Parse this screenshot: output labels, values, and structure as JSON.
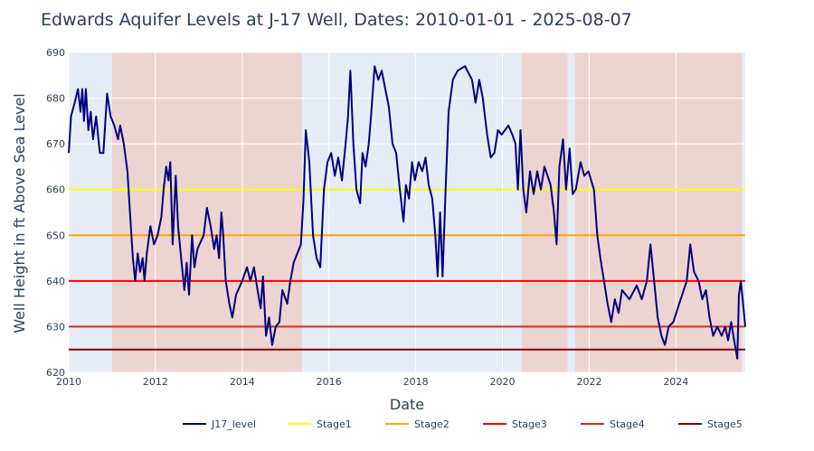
{
  "chart_data": {
    "type": "line",
    "title": "Edwards Aquifer Levels at J-17 Well, Dates: 2010-01-01 - 2025-08-07",
    "xlabel": "Date",
    "ylabel": "Well Height in ft Above Sea Level",
    "xlim": [
      "2010-01-01",
      "2025-08-07"
    ],
    "ylim": [
      620,
      690
    ],
    "xticks": [
      "2010",
      "2012",
      "2014",
      "2016",
      "2018",
      "2020",
      "2022",
      "2024"
    ],
    "yticks": [
      620,
      630,
      640,
      650,
      660,
      670,
      680,
      690
    ],
    "grid": true,
    "legend_position": "bottom",
    "colors": {
      "plot_bg": "#e5ecf6",
      "drought_shade": "#ecd4d0",
      "line": "#000080"
    },
    "shaded_regions": [
      {
        "start": "2010-01-01",
        "end": "2011-01-01",
        "kind": "normal"
      },
      {
        "start": "2011-01-01",
        "end": "2015-05-20",
        "kind": "drought"
      },
      {
        "start": "2015-05-20",
        "end": "2020-06-10",
        "kind": "normal"
      },
      {
        "start": "2020-06-10",
        "end": "2021-07-01",
        "kind": "drought"
      },
      {
        "start": "2021-07-01",
        "end": "2021-09-05",
        "kind": "normal"
      },
      {
        "start": "2021-09-05",
        "end": "2025-07-10",
        "kind": "drought"
      },
      {
        "start": "2025-07-10",
        "end": "2025-08-07",
        "kind": "normal"
      }
    ],
    "stages": [
      {
        "name": "Stage1",
        "value": 660,
        "color": "#ffff00"
      },
      {
        "name": "Stage2",
        "value": 650,
        "color": "#ffa500"
      },
      {
        "name": "Stage3",
        "value": 640,
        "color": "#ff0000"
      },
      {
        "name": "Stage4",
        "value": 630,
        "color": "#e32424"
      },
      {
        "name": "Stage5",
        "value": 625,
        "color": "#8b0000"
      }
    ],
    "series": [
      {
        "name": "J17_level",
        "color": "#000080",
        "points": [
          [
            "2010-01-01",
            668
          ],
          [
            "2010-01-20",
            676
          ],
          [
            "2010-02-20",
            679
          ],
          [
            "2010-03-20",
            682
          ],
          [
            "2010-04-10",
            677
          ],
          [
            "2010-04-25",
            682
          ],
          [
            "2010-05-10",
            675
          ],
          [
            "2010-05-25",
            682
          ],
          [
            "2010-06-15",
            673
          ],
          [
            "2010-07-05",
            677
          ],
          [
            "2010-07-25",
            671
          ],
          [
            "2010-08-20",
            676
          ],
          [
            "2010-09-20",
            668
          ],
          [
            "2010-10-20",
            668
          ],
          [
            "2010-11-20",
            681
          ],
          [
            "2010-12-20",
            676
          ],
          [
            "2011-01-20",
            674
          ],
          [
            "2011-02-20",
            671
          ],
          [
            "2011-03-10",
            674
          ],
          [
            "2011-04-10",
            670
          ],
          [
            "2011-05-10",
            664
          ],
          [
            "2011-06-01",
            655
          ],
          [
            "2011-06-25",
            645
          ],
          [
            "2011-07-15",
            640
          ],
          [
            "2011-08-05",
            646
          ],
          [
            "2011-08-25",
            642
          ],
          [
            "2011-09-15",
            645
          ],
          [
            "2011-10-01",
            640
          ],
          [
            "2011-10-20",
            646
          ],
          [
            "2011-11-20",
            652
          ],
          [
            "2011-12-20",
            648
          ],
          [
            "2012-01-20",
            650
          ],
          [
            "2012-02-20",
            654
          ],
          [
            "2012-03-10",
            660
          ],
          [
            "2012-04-01",
            665
          ],
          [
            "2012-04-20",
            662
          ],
          [
            "2012-05-05",
            666
          ],
          [
            "2012-05-25",
            648
          ],
          [
            "2012-06-20",
            663
          ],
          [
            "2012-07-10",
            652
          ],
          [
            "2012-08-05",
            645
          ],
          [
            "2012-09-01",
            638
          ],
          [
            "2012-09-20",
            644
          ],
          [
            "2012-10-10",
            637
          ],
          [
            "2012-11-05",
            650
          ],
          [
            "2012-11-25",
            643
          ],
          [
            "2012-12-20",
            647
          ],
          [
            "2013-02-10",
            650
          ],
          [
            "2013-03-10",
            656
          ],
          [
            "2013-04-10",
            652
          ],
          [
            "2013-05-10",
            647
          ],
          [
            "2013-05-30",
            650
          ],
          [
            "2013-06-20",
            645
          ],
          [
            "2013-07-10",
            655
          ],
          [
            "2013-07-25",
            650
          ],
          [
            "2013-08-15",
            640
          ],
          [
            "2013-09-15",
            635
          ],
          [
            "2013-10-10",
            632
          ],
          [
            "2013-11-10",
            637
          ],
          [
            "2014-01-01",
            640
          ],
          [
            "2014-02-10",
            643
          ],
          [
            "2014-03-10",
            640
          ],
          [
            "2014-04-10",
            643
          ],
          [
            "2014-05-10",
            638
          ],
          [
            "2014-06-05",
            634
          ],
          [
            "2014-06-25",
            641
          ],
          [
            "2014-07-20",
            628
          ],
          [
            "2014-08-15",
            632
          ],
          [
            "2014-09-10",
            626
          ],
          [
            "2014-10-10",
            630
          ],
          [
            "2014-11-10",
            631
          ],
          [
            "2014-12-05",
            638
          ],
          [
            "2015-01-15",
            635
          ],
          [
            "2015-02-10",
            640
          ],
          [
            "2015-03-10",
            644
          ],
          [
            "2015-04-10",
            646
          ],
          [
            "2015-05-10",
            648
          ],
          [
            "2015-06-01",
            658
          ],
          [
            "2015-06-20",
            673
          ],
          [
            "2015-07-20",
            666
          ],
          [
            "2015-08-20",
            650
          ],
          [
            "2015-09-20",
            645
          ],
          [
            "2015-10-20",
            643
          ],
          [
            "2015-11-20",
            660
          ],
          [
            "2015-12-20",
            666
          ],
          [
            "2016-01-20",
            668
          ],
          [
            "2016-02-20",
            663
          ],
          [
            "2016-03-20",
            667
          ],
          [
            "2016-04-20",
            662
          ],
          [
            "2016-05-20",
            670
          ],
          [
            "2016-06-10",
            676
          ],
          [
            "2016-06-30",
            686
          ],
          [
            "2016-07-25",
            670
          ],
          [
            "2016-08-20",
            660
          ],
          [
            "2016-09-20",
            657
          ],
          [
            "2016-10-10",
            668
          ],
          [
            "2016-11-05",
            665
          ],
          [
            "2016-12-01",
            670
          ],
          [
            "2016-12-20",
            676
          ],
          [
            "2017-01-20",
            687
          ],
          [
            "2017-02-20",
            684
          ],
          [
            "2017-03-20",
            686
          ],
          [
            "2017-04-20",
            682
          ],
          [
            "2017-05-20",
            678
          ],
          [
            "2017-06-20",
            670
          ],
          [
            "2017-07-20",
            668
          ],
          [
            "2017-08-20",
            660
          ],
          [
            "2017-09-20",
            653
          ],
          [
            "2017-10-10",
            661
          ],
          [
            "2017-11-05",
            658
          ],
          [
            "2017-12-01",
            666
          ],
          [
            "2017-12-25",
            662
          ],
          [
            "2018-01-25",
            666
          ],
          [
            "2018-02-25",
            664
          ],
          [
            "2018-03-25",
            667
          ],
          [
            "2018-04-20",
            661
          ],
          [
            "2018-05-20",
            658
          ],
          [
            "2018-06-15",
            650
          ],
          [
            "2018-07-05",
            641
          ],
          [
            "2018-07-25",
            655
          ],
          [
            "2018-08-15",
            641
          ],
          [
            "2018-09-10",
            660
          ],
          [
            "2018-10-05",
            677
          ],
          [
            "2018-11-10",
            684
          ],
          [
            "2018-12-20",
            686
          ],
          [
            "2019-02-20",
            687
          ],
          [
            "2019-04-20",
            684
          ],
          [
            "2019-05-20",
            679
          ],
          [
            "2019-06-20",
            684
          ],
          [
            "2019-07-20",
            680
          ],
          [
            "2019-08-25",
            672
          ],
          [
            "2019-09-25",
            667
          ],
          [
            "2019-10-25",
            668
          ],
          [
            "2019-11-25",
            673
          ],
          [
            "2019-12-25",
            672
          ],
          [
            "2020-02-20",
            674
          ],
          [
            "2020-03-25",
            672
          ],
          [
            "2020-04-20",
            670
          ],
          [
            "2020-05-10",
            660
          ],
          [
            "2020-06-01",
            673
          ],
          [
            "2020-06-25",
            660
          ],
          [
            "2020-07-20",
            655
          ],
          [
            "2020-08-20",
            664
          ],
          [
            "2020-09-20",
            659
          ],
          [
            "2020-10-20",
            664
          ],
          [
            "2020-11-20",
            660
          ],
          [
            "2020-12-20",
            665
          ],
          [
            "2021-02-10",
            661
          ],
          [
            "2021-03-10",
            655
          ],
          [
            "2021-04-01",
            648
          ],
          [
            "2021-04-25",
            665
          ],
          [
            "2021-05-25",
            671
          ],
          [
            "2021-06-20",
            660
          ],
          [
            "2021-07-20",
            669
          ],
          [
            "2021-08-15",
            659
          ],
          [
            "2021-09-10",
            660
          ],
          [
            "2021-10-20",
            666
          ],
          [
            "2021-11-20",
            663
          ],
          [
            "2021-12-25",
            664
          ],
          [
            "2022-02-10",
            660
          ],
          [
            "2022-03-10",
            650
          ],
          [
            "2022-04-05",
            645
          ],
          [
            "2022-05-05",
            640
          ],
          [
            "2022-06-05",
            635
          ],
          [
            "2022-07-05",
            631
          ],
          [
            "2022-08-05",
            636
          ],
          [
            "2022-09-05",
            633
          ],
          [
            "2022-10-05",
            638
          ],
          [
            "2022-12-05",
            636
          ],
          [
            "2023-02-05",
            639
          ],
          [
            "2023-03-20",
            636
          ],
          [
            "2023-05-01",
            640
          ],
          [
            "2023-06-01",
            648
          ],
          [
            "2023-07-01",
            640
          ],
          [
            "2023-08-01",
            632
          ],
          [
            "2023-09-01",
            628
          ],
          [
            "2023-10-01",
            626
          ],
          [
            "2023-11-01",
            630
          ],
          [
            "2023-12-10",
            631
          ],
          [
            "2024-02-10",
            636
          ],
          [
            "2024-04-01",
            640
          ],
          [
            "2024-05-01",
            648
          ],
          [
            "2024-06-01",
            642
          ],
          [
            "2024-07-10",
            640
          ],
          [
            "2024-08-10",
            636
          ],
          [
            "2024-09-10",
            638
          ],
          [
            "2024-10-10",
            632
          ],
          [
            "2024-11-10",
            628
          ],
          [
            "2024-12-15",
            630
          ],
          [
            "2025-01-20",
            628
          ],
          [
            "2025-02-20",
            630
          ],
          [
            "2025-03-15",
            627
          ],
          [
            "2025-04-10",
            631
          ],
          [
            "2025-05-05",
            627
          ],
          [
            "2025-06-01",
            623
          ],
          [
            "2025-06-15",
            637
          ],
          [
            "2025-07-01",
            640
          ],
          [
            "2025-07-20",
            635
          ],
          [
            "2025-08-07",
            630
          ]
        ]
      }
    ],
    "legend": [
      "J17_level",
      "Stage1",
      "Stage2",
      "Stage3",
      "Stage4",
      "Stage5"
    ]
  }
}
